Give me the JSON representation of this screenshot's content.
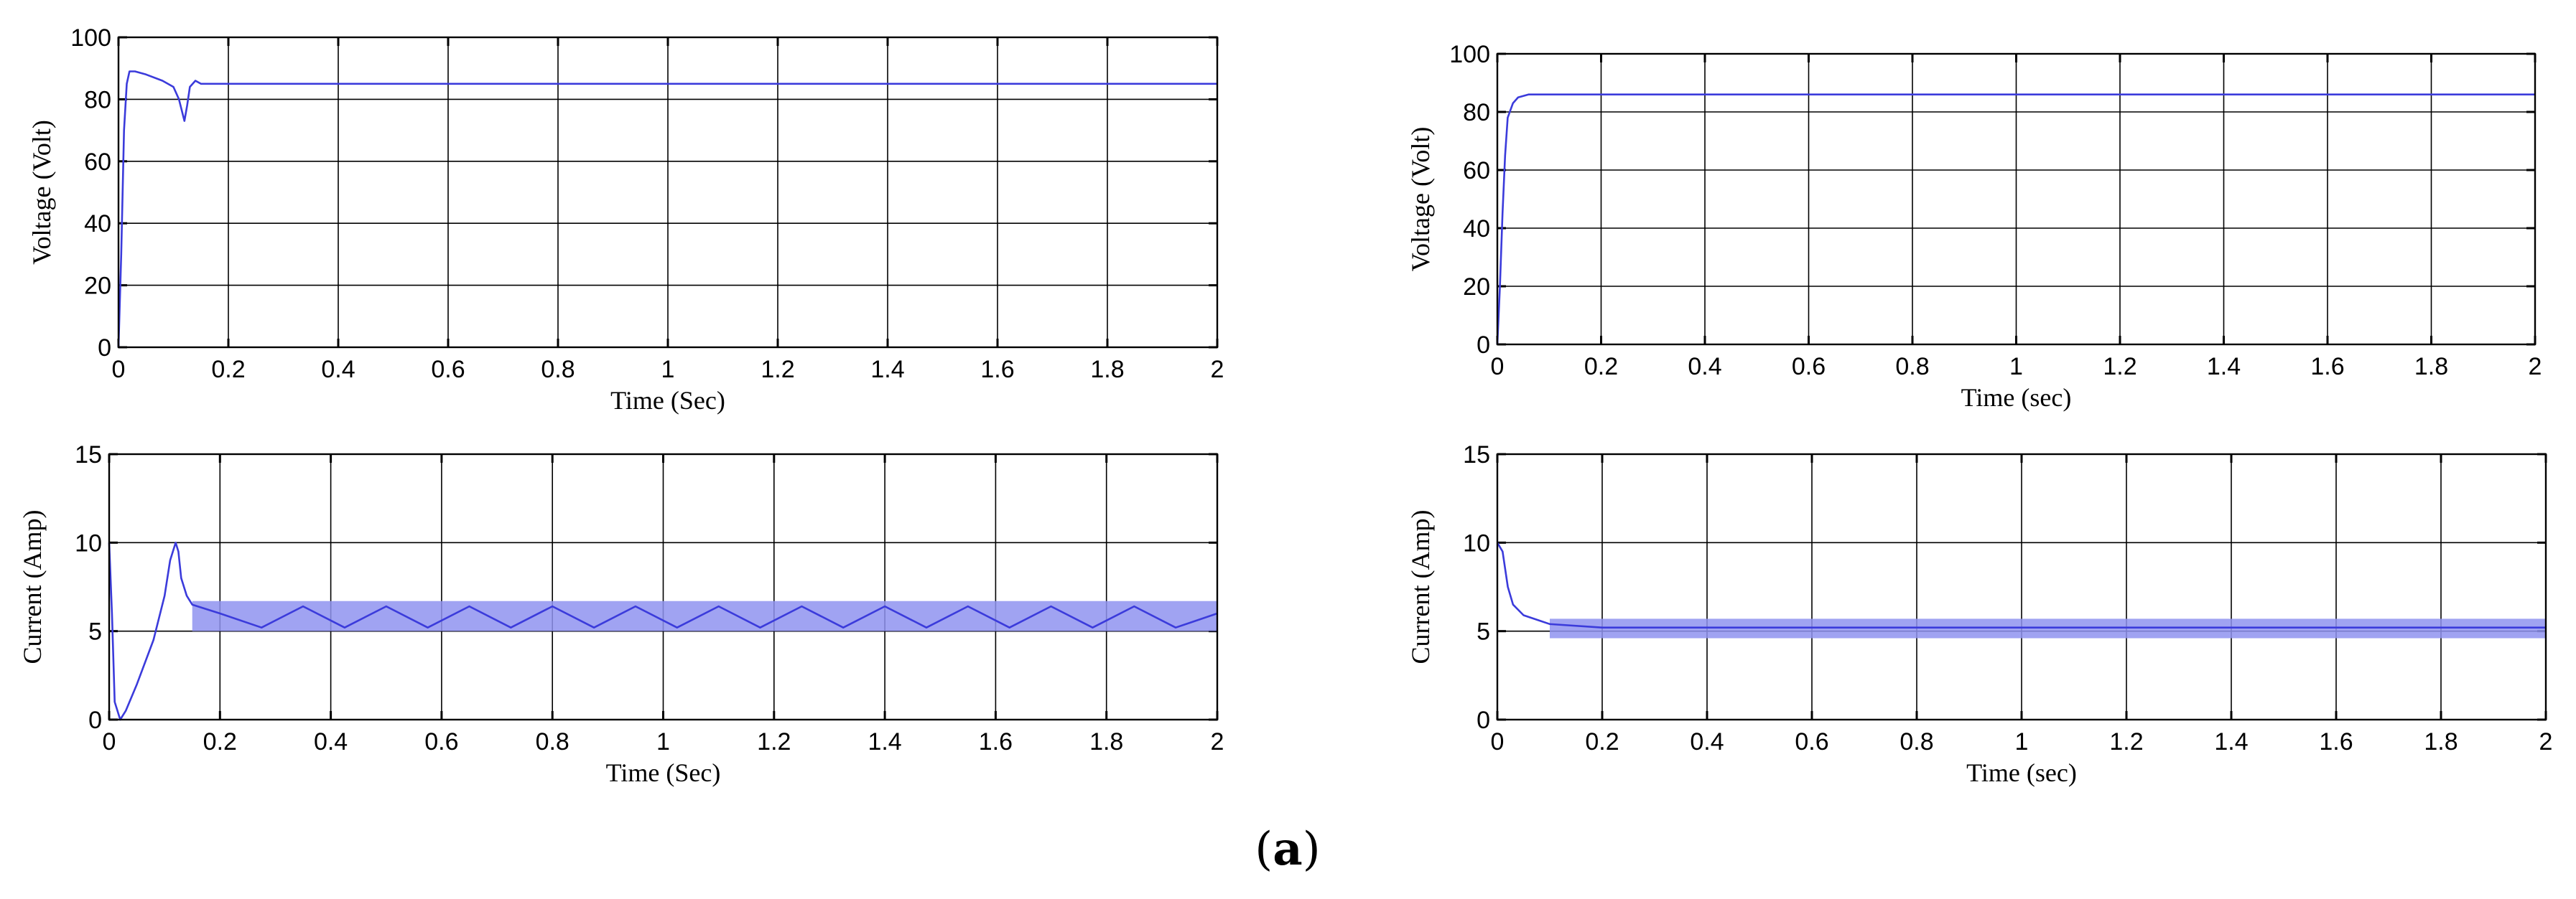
{
  "colors": {
    "trace": "#3b3bdb",
    "band": "#8f93f0",
    "grid": "#000000"
  },
  "caption": {
    "open": "(",
    "letter": "a",
    "close": ")"
  },
  "chart_data": [
    {
      "id": "voltage_left",
      "type": "line",
      "title": "",
      "xlabel": "Time (Sec)",
      "ylabel": "Voltage (Volt)",
      "xlim": [
        0,
        2
      ],
      "ylim": [
        0,
        100
      ],
      "xticks": [
        0,
        0.2,
        0.4,
        0.6,
        0.8,
        1,
        1.2,
        1.4,
        1.6,
        1.8,
        2
      ],
      "xtick_labels": [
        "0",
        "0.2",
        "0.4",
        "0.6",
        "0.8",
        "1",
        "1.2",
        "1.4",
        "1.6",
        "1.8",
        "2"
      ],
      "yticks": [
        0,
        20,
        40,
        60,
        80,
        100
      ],
      "ytick_labels": [
        "0",
        "20",
        "40",
        "60",
        "80",
        "100"
      ],
      "grid": true,
      "series": [
        {
          "name": "Voltage",
          "x": [
            0,
            0.005,
            0.01,
            0.015,
            0.02,
            0.03,
            0.05,
            0.08,
            0.1,
            0.11,
            0.12,
            0.125,
            0.13,
            0.14,
            0.15,
            0.2,
            0.5,
            1.0,
            1.5,
            2.0
          ],
          "y": [
            0,
            30,
            70,
            85,
            89,
            89,
            88,
            86,
            84,
            80,
            73,
            78,
            84,
            86,
            85,
            85,
            85,
            85,
            85,
            85
          ]
        }
      ]
    },
    {
      "id": "voltage_right",
      "type": "line",
      "title": "",
      "xlabel": "Time (sec)",
      "ylabel": "Voltage (Volt)",
      "xlim": [
        0,
        2
      ],
      "ylim": [
        0,
        100
      ],
      "xticks": [
        0,
        0.2,
        0.4,
        0.6,
        0.8,
        1,
        1.2,
        1.4,
        1.6,
        1.8,
        2
      ],
      "xtick_labels": [
        "0",
        "0.2",
        "0.4",
        "0.6",
        "0.8",
        "1",
        "1.2",
        "1.4",
        "1.6",
        "1.8",
        "2"
      ],
      "yticks": [
        0,
        20,
        40,
        60,
        80,
        100
      ],
      "ytick_labels": [
        "0",
        "20",
        "40",
        "60",
        "80",
        "100"
      ],
      "grid": true,
      "series": [
        {
          "name": "Voltage",
          "x": [
            0,
            0.005,
            0.01,
            0.015,
            0.02,
            0.03,
            0.04,
            0.06,
            0.1,
            0.2,
            0.5,
            1.0,
            1.5,
            2.0
          ],
          "y": [
            0,
            20,
            45,
            65,
            78,
            83,
            85,
            86,
            86,
            86,
            86,
            86,
            86,
            86
          ]
        }
      ]
    },
    {
      "id": "current_left",
      "type": "line",
      "title": "",
      "xlabel": "Time (Sec)",
      "ylabel": "Current (Amp)",
      "xlim": [
        0,
        2
      ],
      "ylim": [
        0,
        15
      ],
      "xticks": [
        0,
        0.2,
        0.4,
        0.6,
        0.8,
        1,
        1.2,
        1.4,
        1.6,
        1.8,
        2
      ],
      "xtick_labels": [
        "0",
        "0.2",
        "0.4",
        "0.6",
        "0.8",
        "1",
        "1.2",
        "1.4",
        "1.6",
        "1.8",
        "2"
      ],
      "yticks": [
        0,
        5,
        10,
        15
      ],
      "ytick_labels": [
        "0",
        "5",
        "10",
        "15"
      ],
      "grid": true,
      "band": {
        "x_start": 0.15,
        "x_end": 2.0,
        "y_low": 5.0,
        "y_high": 6.7
      },
      "series": [
        {
          "name": "Current",
          "x": [
            0,
            0.005,
            0.01,
            0.02,
            0.03,
            0.05,
            0.08,
            0.1,
            0.11,
            0.12,
            0.125,
            0.13,
            0.14,
            0.15,
            0.2,
            0.275,
            0.35,
            0.425,
            0.5,
            0.575,
            0.65,
            0.725,
            0.8,
            0.875,
            0.95,
            1.025,
            1.1,
            1.175,
            1.25,
            1.325,
            1.4,
            1.475,
            1.55,
            1.625,
            1.7,
            1.775,
            1.85,
            1.925,
            2.0
          ],
          "y": [
            10,
            6,
            1,
            0,
            0.5,
            2,
            4.5,
            7,
            9,
            10,
            9.5,
            8,
            7,
            6.5,
            6.0,
            5.2,
            6.4,
            5.2,
            6.4,
            5.2,
            6.4,
            5.2,
            6.4,
            5.2,
            6.4,
            5.2,
            6.4,
            5.2,
            6.4,
            5.2,
            6.4,
            5.2,
            6.4,
            5.2,
            6.4,
            5.2,
            6.4,
            5.2,
            6.0
          ]
        }
      ]
    },
    {
      "id": "current_right",
      "type": "line",
      "title": "",
      "xlabel": "Time (sec)",
      "ylabel": "Current (Amp)",
      "xlim": [
        0,
        2
      ],
      "ylim": [
        0,
        15
      ],
      "xticks": [
        0,
        0.2,
        0.4,
        0.6,
        0.8,
        1,
        1.2,
        1.4,
        1.6,
        1.8,
        2
      ],
      "xtick_labels": [
        "0",
        "0.2",
        "0.4",
        "0.6",
        "0.8",
        "1",
        "1.2",
        "1.4",
        "1.6",
        "1.8",
        "2"
      ],
      "yticks": [
        0,
        5,
        10,
        15
      ],
      "ytick_labels": [
        "0",
        "5",
        "10",
        "15"
      ],
      "grid": true,
      "band": {
        "x_start": 0.1,
        "x_end": 2.0,
        "y_low": 4.6,
        "y_high": 5.7
      },
      "series": [
        {
          "name": "Current",
          "x": [
            0,
            0.01,
            0.02,
            0.03,
            0.05,
            0.08,
            0.1,
            0.2,
            0.5,
            1.0,
            1.5,
            2.0
          ],
          "y": [
            10,
            9.5,
            7.5,
            6.5,
            5.9,
            5.6,
            5.4,
            5.2,
            5.2,
            5.2,
            5.2,
            5.2
          ]
        }
      ]
    }
  ]
}
